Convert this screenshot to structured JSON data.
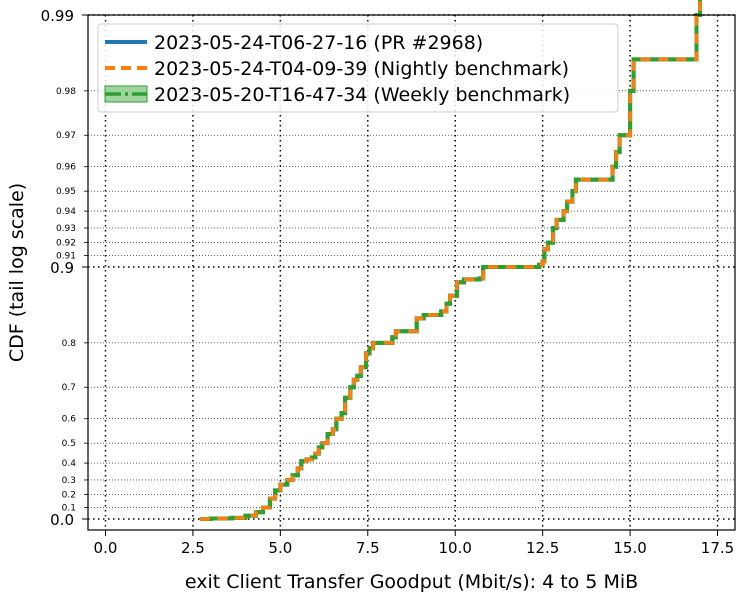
{
  "chart_data": {
    "type": "line",
    "title": "",
    "xlabel": "exit Client Transfer Goodput (Mbit/s): 4 to 5 MiB",
    "ylabel": "CDF (tail log scale)",
    "xlim": [
      -0.5,
      18.0
    ],
    "x_ticks": [
      0.0,
      2.5,
      5.0,
      7.5,
      10.0,
      12.5,
      15.0,
      17.5
    ],
    "x_tick_labels": [
      "0.0",
      "2.5",
      "5.0",
      "7.5",
      "10.0",
      "12.5",
      "15.0",
      "17.5"
    ],
    "y_scale": "tail log",
    "ylim": [
      0.0,
      0.99
    ],
    "y_major_ticks": [
      0.0,
      0.9,
      0.99
    ],
    "y_major_tick_labels": [
      "0.0",
      "0.9",
      "0.99"
    ],
    "y_minor_ticks": [
      0.1,
      0.2,
      0.3,
      0.4,
      0.5,
      0.6,
      0.7,
      0.8,
      0.91,
      0.92,
      0.93,
      0.94,
      0.95,
      0.96,
      0.97,
      0.98
    ],
    "y_minor_tick_labels": [
      "0.1",
      "0.2",
      "0.3",
      "0.4",
      "0.5",
      "0.6",
      "0.7",
      "0.8",
      "0.91",
      "0.92",
      "0.93",
      "0.94",
      "0.95",
      "0.96",
      "0.97",
      "0.98"
    ],
    "grid": true,
    "legend_position": "top-left",
    "series": [
      {
        "name": "2023-05-24-T06-27-16 (PR #2968)",
        "color": "#1f77b4",
        "style": "solid",
        "x": [
          2.7,
          3.0,
          3.6,
          4.0,
          4.3,
          4.5,
          4.7,
          4.85,
          5.0,
          5.2,
          5.35,
          5.5,
          5.6,
          5.75,
          5.9,
          6.0,
          6.1,
          6.2,
          6.35,
          6.5,
          6.6,
          6.75,
          6.85,
          7.0,
          7.1,
          7.2,
          7.3,
          7.45,
          7.55,
          7.65,
          8.2,
          8.3,
          8.9,
          9.1,
          9.6,
          9.75,
          9.85,
          10.05,
          10.25,
          10.7,
          10.8,
          12.4,
          12.5,
          12.55,
          12.65,
          12.8,
          12.9,
          13.1,
          13.2,
          13.35,
          13.45,
          14.5,
          14.6,
          14.7,
          15.0,
          15.1,
          16.9,
          17.0
        ],
        "y": [
          0.0,
          0.005,
          0.01,
          0.03,
          0.06,
          0.1,
          0.17,
          0.23,
          0.27,
          0.3,
          0.33,
          0.37,
          0.41,
          0.42,
          0.43,
          0.45,
          0.48,
          0.5,
          0.54,
          0.56,
          0.6,
          0.62,
          0.67,
          0.7,
          0.72,
          0.73,
          0.75,
          0.78,
          0.79,
          0.8,
          0.81,
          0.82,
          0.84,
          0.845,
          0.85,
          0.86,
          0.87,
          0.885,
          0.888,
          0.889,
          0.9,
          0.902,
          0.905,
          0.915,
          0.92,
          0.93,
          0.935,
          0.94,
          0.945,
          0.95,
          0.955,
          0.96,
          0.965,
          0.97,
          0.98,
          0.985,
          0.99,
          0.995
        ]
      },
      {
        "name": "2023-05-24-T04-09-39 (Nightly benchmark)",
        "color": "#ff7f0e",
        "style": "dashed",
        "x": [
          2.7,
          3.0,
          3.6,
          4.0,
          4.3,
          4.5,
          4.7,
          4.85,
          5.0,
          5.2,
          5.35,
          5.5,
          5.6,
          5.75,
          5.9,
          6.0,
          6.1,
          6.2,
          6.35,
          6.5,
          6.6,
          6.75,
          6.85,
          7.0,
          7.1,
          7.2,
          7.3,
          7.45,
          7.55,
          7.65,
          8.2,
          8.3,
          8.9,
          9.1,
          9.6,
          9.75,
          9.85,
          10.05,
          10.25,
          10.7,
          10.8,
          12.4,
          12.5,
          12.55,
          12.65,
          12.8,
          12.9,
          13.1,
          13.2,
          13.35,
          13.45,
          14.5,
          14.6,
          14.7,
          15.0,
          15.1,
          16.9,
          17.0
        ],
        "y": [
          0.0,
          0.005,
          0.01,
          0.03,
          0.06,
          0.1,
          0.17,
          0.23,
          0.27,
          0.3,
          0.33,
          0.37,
          0.41,
          0.42,
          0.43,
          0.45,
          0.48,
          0.5,
          0.54,
          0.56,
          0.6,
          0.62,
          0.67,
          0.7,
          0.72,
          0.73,
          0.75,
          0.78,
          0.79,
          0.8,
          0.81,
          0.82,
          0.84,
          0.845,
          0.85,
          0.86,
          0.87,
          0.885,
          0.888,
          0.889,
          0.9,
          0.902,
          0.905,
          0.915,
          0.92,
          0.93,
          0.935,
          0.94,
          0.945,
          0.95,
          0.955,
          0.96,
          0.965,
          0.97,
          0.98,
          0.985,
          0.99,
          0.995
        ]
      },
      {
        "name": "2023-05-20-T16-47-34 (Weekly benchmark)",
        "color": "#2ca02c",
        "style": "solid-band",
        "x": [
          2.7,
          3.0,
          3.6,
          4.0,
          4.3,
          4.5,
          4.7,
          4.85,
          5.0,
          5.2,
          5.35,
          5.5,
          5.6,
          5.75,
          5.9,
          6.0,
          6.1,
          6.2,
          6.35,
          6.5,
          6.6,
          6.75,
          6.85,
          7.0,
          7.1,
          7.2,
          7.3,
          7.45,
          7.55,
          7.65,
          8.2,
          8.3,
          8.9,
          9.1,
          9.6,
          9.75,
          9.85,
          10.05,
          10.25,
          10.7,
          10.8,
          12.4,
          12.5,
          12.55,
          12.65,
          12.8,
          12.9,
          13.1,
          13.2,
          13.35,
          13.45,
          14.5,
          14.6,
          14.7,
          15.0,
          15.1,
          16.9,
          17.0
        ],
        "y": [
          0.0,
          0.005,
          0.01,
          0.03,
          0.06,
          0.1,
          0.17,
          0.23,
          0.27,
          0.3,
          0.33,
          0.37,
          0.41,
          0.42,
          0.43,
          0.45,
          0.48,
          0.5,
          0.54,
          0.56,
          0.6,
          0.62,
          0.67,
          0.7,
          0.72,
          0.73,
          0.75,
          0.78,
          0.79,
          0.8,
          0.81,
          0.82,
          0.84,
          0.845,
          0.85,
          0.86,
          0.87,
          0.885,
          0.888,
          0.889,
          0.9,
          0.902,
          0.905,
          0.915,
          0.92,
          0.93,
          0.935,
          0.94,
          0.945,
          0.95,
          0.955,
          0.96,
          0.965,
          0.97,
          0.98,
          0.985,
          0.99,
          0.995
        ]
      }
    ]
  }
}
